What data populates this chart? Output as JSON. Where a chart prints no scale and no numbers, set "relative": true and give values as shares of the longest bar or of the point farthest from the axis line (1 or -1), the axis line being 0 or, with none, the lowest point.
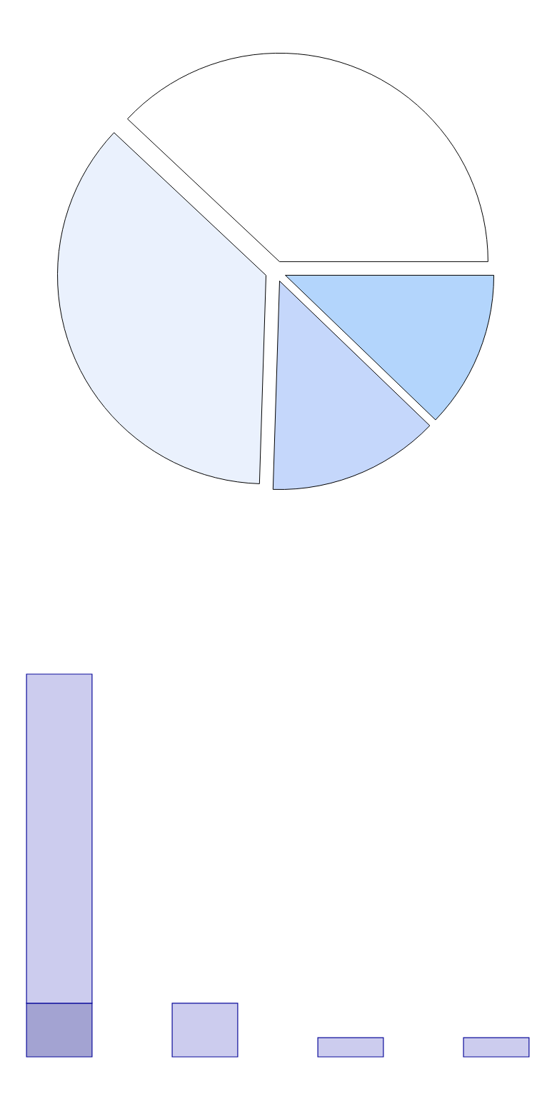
{
  "chart_data": [
    {
      "type": "pie",
      "categories": [
        null,
        null,
        null,
        null
      ],
      "values": [
        38,
        36.5,
        13.3,
        12.2
      ],
      "colors": [
        "#ffffff",
        "#eaf1fd",
        "#c5d7fb",
        "#b3d5fc"
      ]
    },
    {
      "type": "bar",
      "relative": true,
      "stacked": true,
      "categories": [
        null,
        null,
        null,
        null
      ],
      "series": [
        {
          "color": "#a3a3d2",
          "values": [
            0.14,
            null,
            null,
            null
          ]
        },
        {
          "color": "#ccccee",
          "values": [
            0.86,
            0.14,
            0.05,
            0.05
          ]
        }
      ]
    }
  ]
}
